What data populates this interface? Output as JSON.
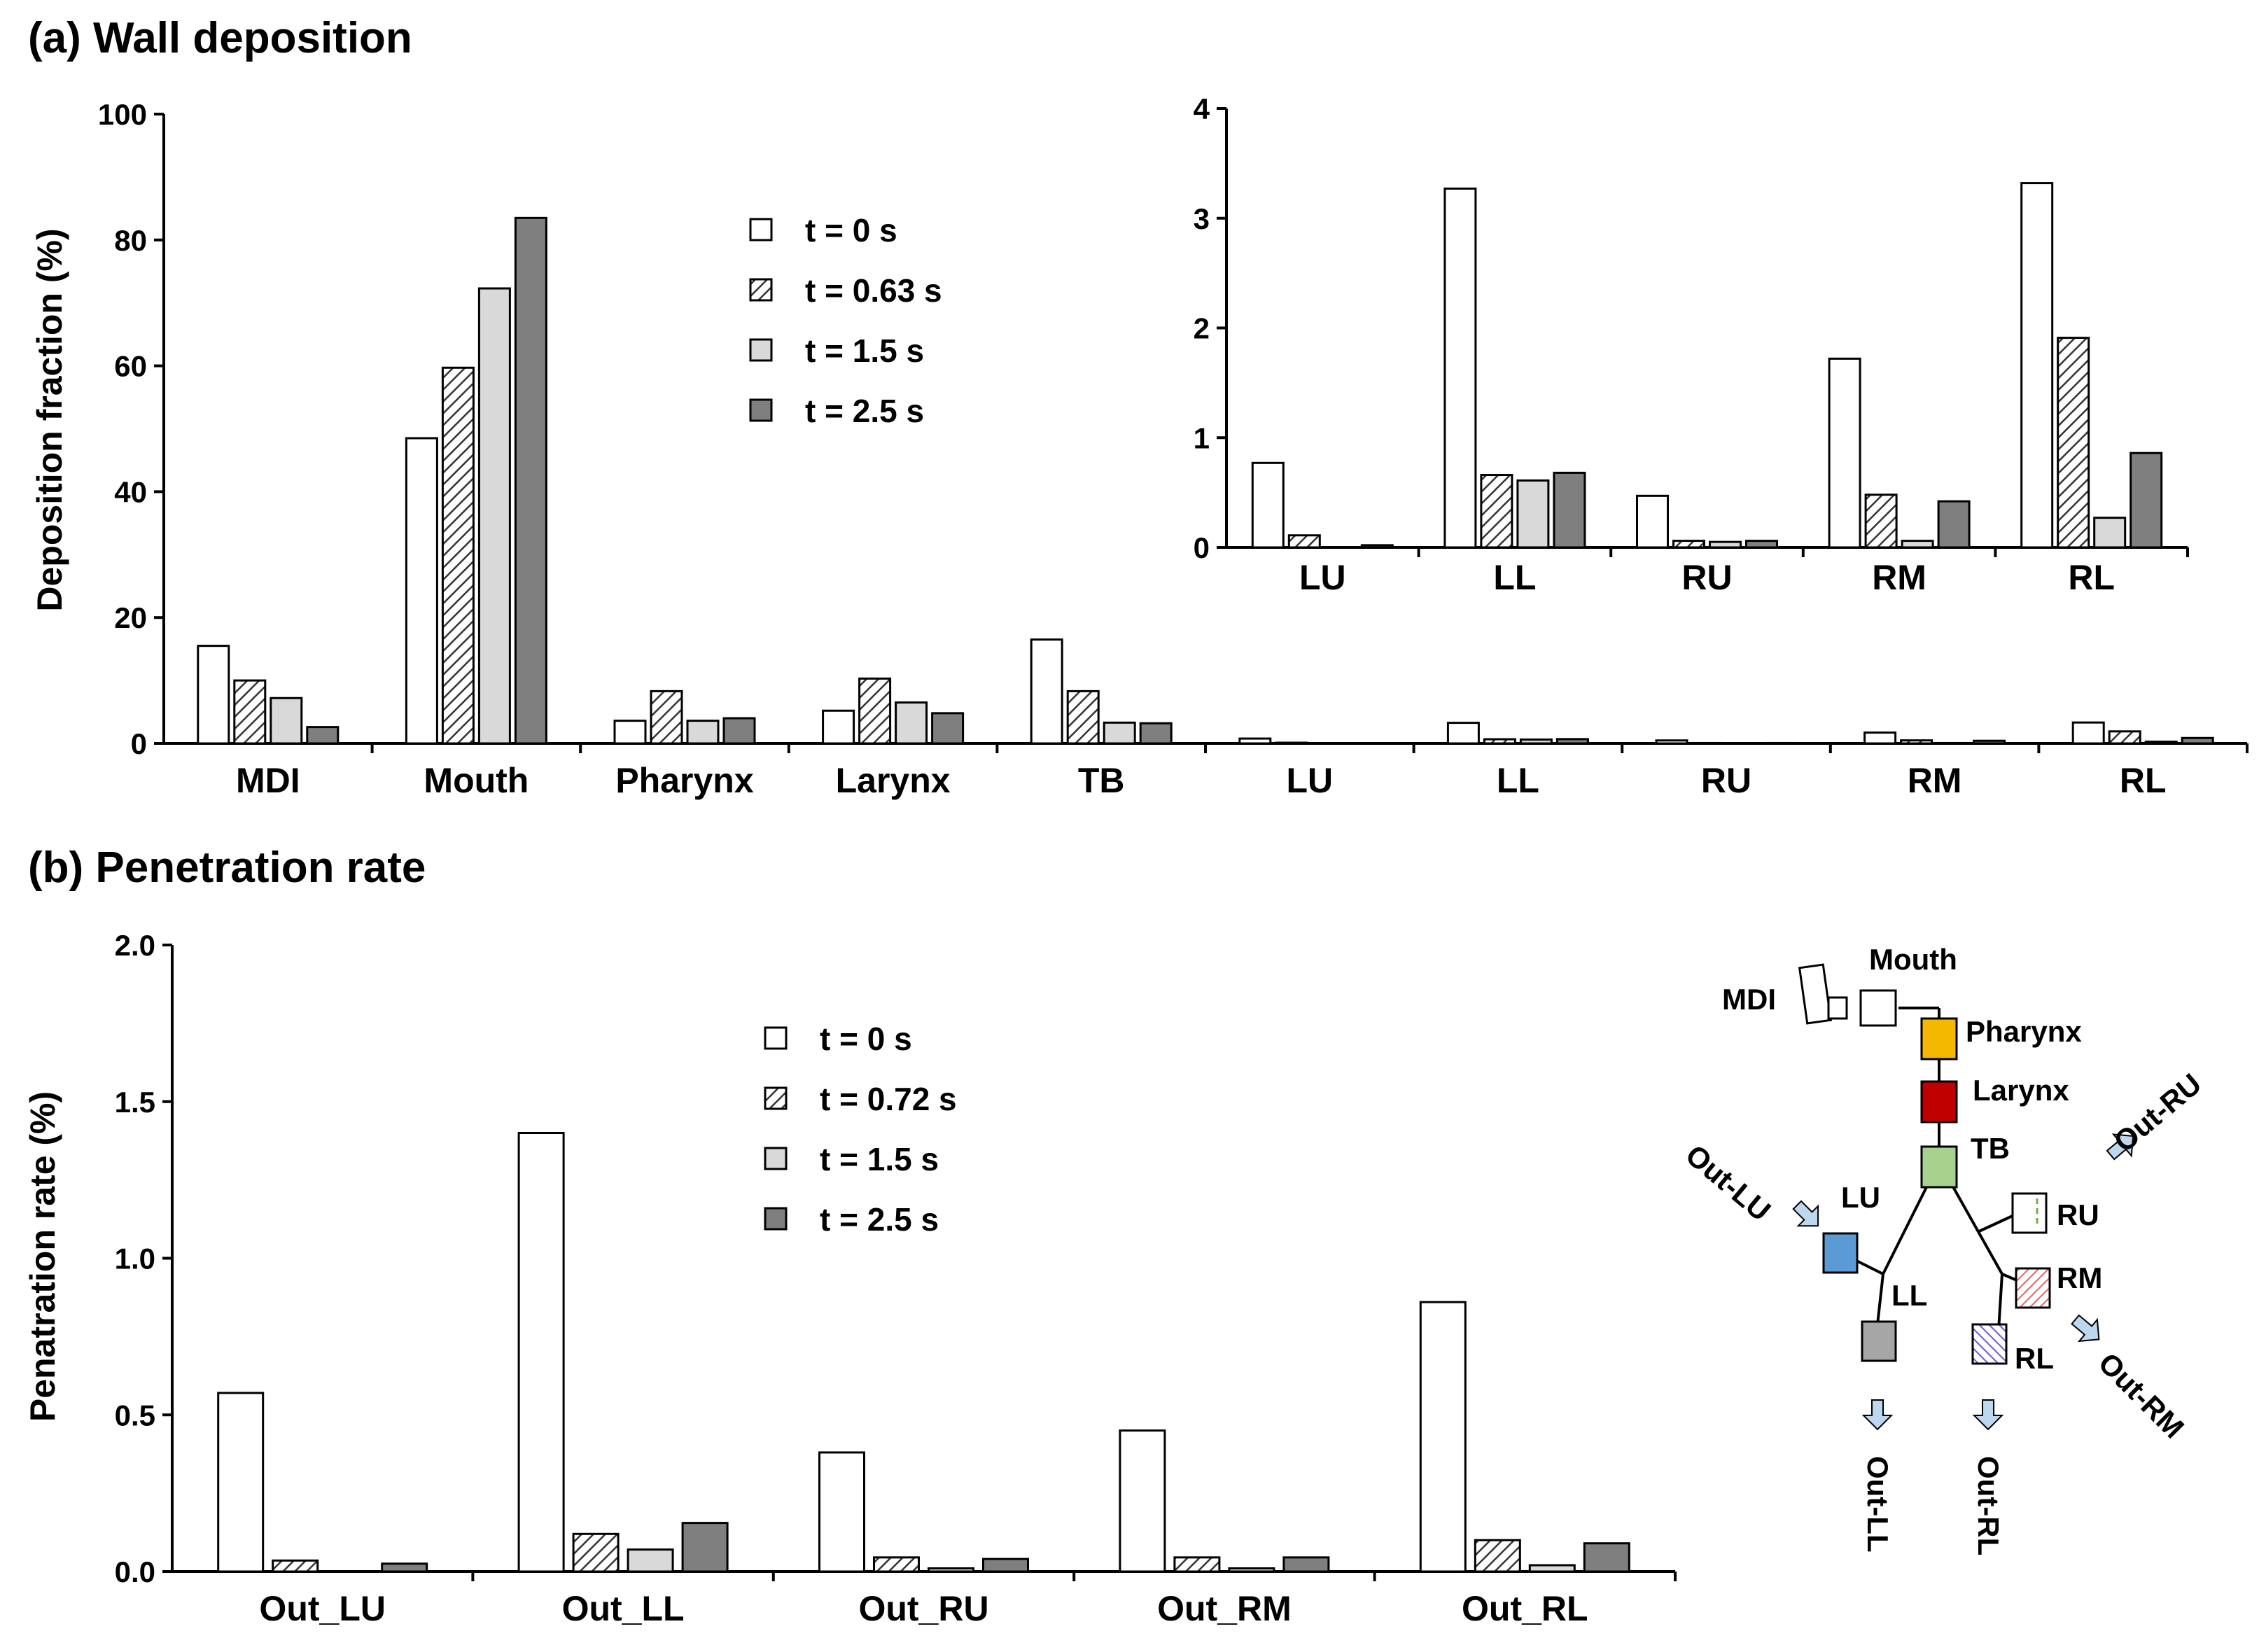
{
  "colors": {
    "t0": "#ffffff",
    "t1": "#d8d8d8",
    "t2": "#d9d9d9",
    "t3": "#7f7f7f",
    "pharynx": "#f5b800",
    "larynx": "#c00000",
    "tb": "#a9d18e",
    "lu": "#5b9bd5",
    "ll": "#a6a6a6",
    "rm": "#e06666",
    "rl": "#6b5bd5",
    "arrow": "#bdd7ee"
  },
  "chart_data": [
    {
      "type": "bar",
      "id": "wall",
      "title": "(a) Wall deposition",
      "ylabel": "Deposition fraction (%)",
      "xlabel": "",
      "ylim": [
        0,
        100
      ],
      "yticks": [
        "0",
        "20",
        "40",
        "60",
        "80",
        "100"
      ],
      "categories": [
        "MDI",
        "Mouth",
        "Pharynx",
        "Larynx",
        "TB",
        "LU",
        "LL",
        "RU",
        "RM",
        "RL"
      ],
      "legend_position": "upper-center",
      "series": [
        {
          "name": "t = 0 s",
          "values": [
            15.5,
            48.5,
            3.6,
            5.2,
            16.5,
            0.77,
            3.27,
            0.47,
            1.72,
            3.32
          ]
        },
        {
          "name": "t = 0.63 s",
          "values": [
            10.0,
            59.7,
            8.3,
            10.3,
            8.3,
            0.11,
            0.66,
            0.06,
            0.48,
            1.91
          ]
        },
        {
          "name": "t = 1.5 s",
          "values": [
            7.2,
            72.3,
            3.6,
            6.5,
            3.3,
            0.0,
            0.61,
            0.05,
            0.06,
            0.27
          ]
        },
        {
          "name": "t = 2.5 s",
          "values": [
            2.6,
            83.5,
            4.0,
            4.8,
            3.2,
            0.02,
            0.68,
            0.06,
            0.42,
            0.86
          ]
        }
      ]
    },
    {
      "type": "bar",
      "id": "inset",
      "title": "",
      "ylabel": "",
      "xlabel": "",
      "ylim": [
        0,
        4
      ],
      "yticks": [
        "0",
        "1",
        "2",
        "3",
        "4"
      ],
      "categories": [
        "LU",
        "LL",
        "RU",
        "RM",
        "RL"
      ],
      "series": [
        {
          "name": "t = 0 s",
          "values": [
            0.77,
            3.27,
            0.47,
            1.72,
            3.32
          ]
        },
        {
          "name": "t = 0.63 s",
          "values": [
            0.11,
            0.66,
            0.06,
            0.48,
            1.91
          ]
        },
        {
          "name": "t = 1.5 s",
          "values": [
            0.0,
            0.61,
            0.05,
            0.06,
            0.27
          ]
        },
        {
          "name": "t = 2.5 s",
          "values": [
            0.02,
            0.68,
            0.06,
            0.42,
            0.86
          ]
        }
      ]
    },
    {
      "type": "bar",
      "id": "pen",
      "title": "(b) Penetration rate",
      "ylabel": "Penatration rate (%)",
      "xlabel": "",
      "ylim": [
        0,
        2.0
      ],
      "yticks": [
        "0.0",
        "0.5",
        "1.0",
        "1.5",
        "2.0"
      ],
      "categories": [
        "Out_LU",
        "Out_LL",
        "Out_RU",
        "Out_RM",
        "Out_RL"
      ],
      "legend_position": "upper-center",
      "series": [
        {
          "name": "t = 0 s",
          "values": [
            0.57,
            1.4,
            0.38,
            0.45,
            0.86
          ]
        },
        {
          "name": "t = 0.72 s",
          "values": [
            0.035,
            0.12,
            0.045,
            0.045,
            0.1
          ]
        },
        {
          "name": "t = 1.5 s",
          "values": [
            0.0,
            0.07,
            0.01,
            0.01,
            0.02
          ]
        },
        {
          "name": "t = 2.5 s",
          "values": [
            0.025,
            0.155,
            0.04,
            0.045,
            0.09
          ]
        }
      ]
    }
  ],
  "diagram": {
    "labels": {
      "mouth": "Mouth",
      "mdi": "MDI",
      "pharynx": "Pharynx",
      "larynx": "Larynx",
      "tb": "TB",
      "lu": "LU",
      "ll": "LL",
      "ru": "RU",
      "rm": "RM",
      "rl": "RL",
      "out_lu": "Out-LU",
      "out_ru": "Out-RU",
      "out_rm": "Out-RM",
      "out_ll": "Out-LL",
      "out_rl": "Out-RL"
    }
  }
}
